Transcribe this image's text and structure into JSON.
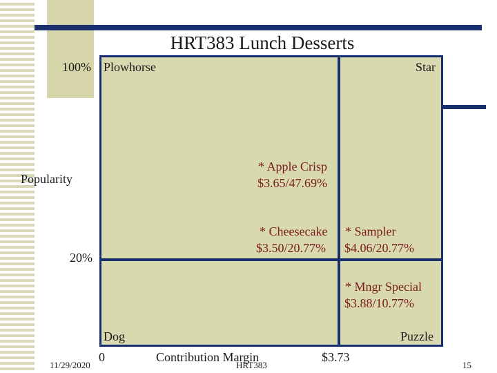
{
  "title": "HRT383 Lunch Desserts",
  "y_axis": {
    "label": "Popularity",
    "top_tick": "100%",
    "mid_tick": "20%"
  },
  "x_axis": {
    "label": "Contribution Margin",
    "left_tick": "0",
    "mid_tick": "$3.73"
  },
  "quadrants": {
    "top_left": "Plowhorse",
    "top_right": "Star",
    "bottom_left": "Dog",
    "bottom_right": "Puzzle"
  },
  "items": [
    {
      "name": "* Apple Crisp",
      "value": "$3.65/47.69%"
    },
    {
      "name": "* Cheesecake",
      "value": "$3.50/20.77%"
    },
    {
      "name": "* Sampler",
      "value": "$4.06/20.77%"
    },
    {
      "name": "* Mngr Special",
      "value": "$3.88/10.77%"
    }
  ],
  "footer": {
    "date": "11/29/2020",
    "center": "HRT383",
    "page": "15"
  },
  "colors": {
    "navy": "#1a2f6d",
    "tan": "#d9d9b0",
    "item_text": "#7a1a1a"
  }
}
